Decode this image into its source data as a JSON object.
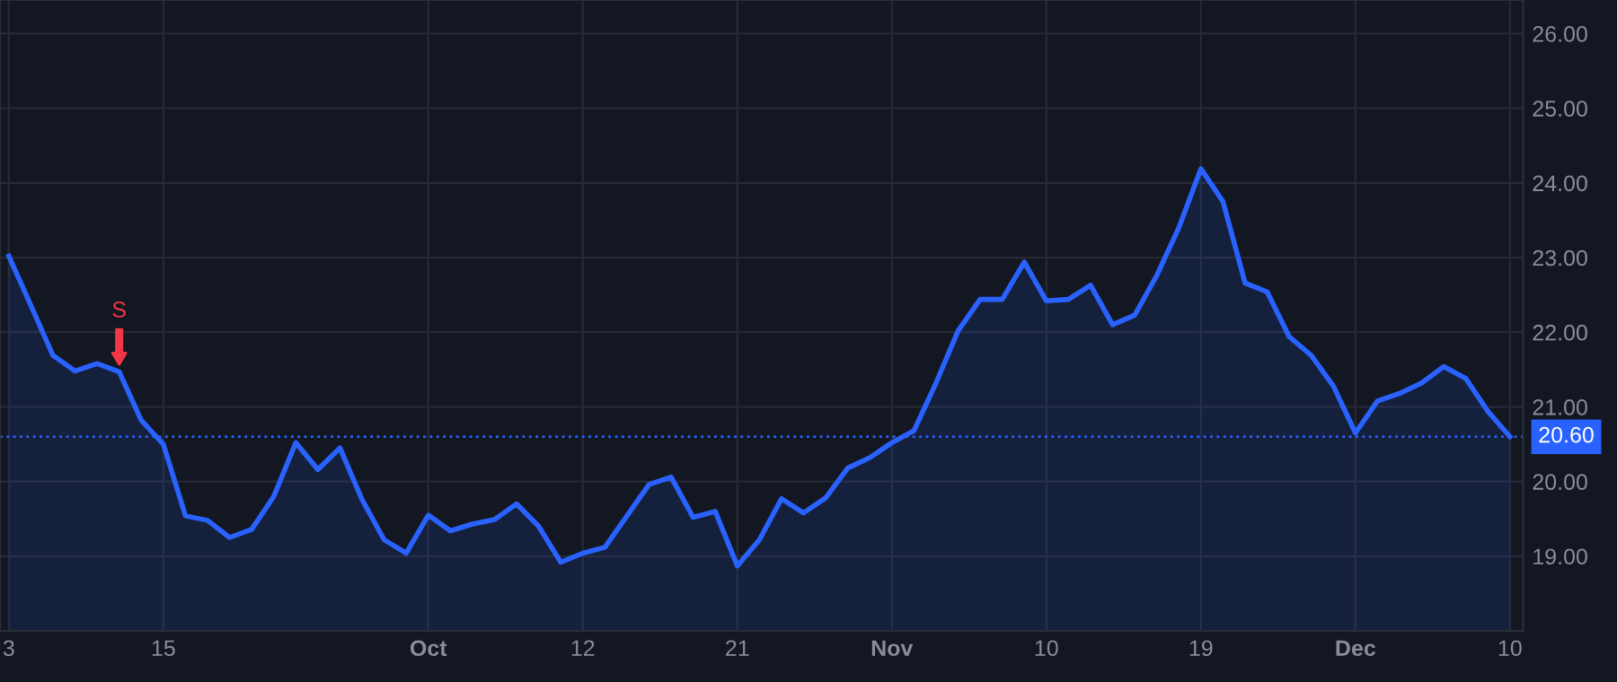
{
  "chart_data": {
    "type": "area",
    "categories": [
      "3",
      null,
      null,
      null,
      null,
      null,
      null,
      "15",
      null,
      null,
      null,
      null,
      null,
      null,
      null,
      null,
      null,
      null,
      null,
      "Oct",
      null,
      null,
      null,
      null,
      null,
      null,
      "12",
      null,
      null,
      null,
      null,
      null,
      null,
      "21",
      null,
      null,
      null,
      null,
      null,
      null,
      "Nov",
      null,
      null,
      null,
      null,
      null,
      null,
      "10",
      null,
      null,
      null,
      null,
      null,
      null,
      "19",
      null,
      null,
      null,
      null,
      null,
      null,
      "Dec",
      null,
      null,
      null,
      null,
      null,
      null,
      "10"
    ],
    "series": [
      {
        "color": "#2962ff",
        "values": [
          23.02,
          22.36,
          21.69,
          21.48,
          21.58,
          21.47,
          20.82,
          20.5,
          19.54,
          19.48,
          19.25,
          19.36,
          19.8,
          20.52,
          20.16,
          20.45,
          19.76,
          19.22,
          19.04,
          19.55,
          19.34,
          19.43,
          19.49,
          19.7,
          19.4,
          18.92,
          19.04,
          19.12,
          19.54,
          19.96,
          20.06,
          19.52,
          19.6,
          18.87,
          19.22,
          19.77,
          19.58,
          19.78,
          20.18,
          20.32,
          20.52,
          20.68,
          21.32,
          22.02,
          22.44,
          22.44,
          22.94,
          22.42,
          22.44,
          22.63,
          22.1,
          22.23,
          22.76,
          23.4,
          24.19,
          23.75,
          22.66,
          22.54,
          21.94,
          21.69,
          21.28,
          20.65,
          21.08,
          21.18,
          21.32,
          21.54,
          21.38,
          20.94,
          20.6
        ]
      }
    ],
    "ylim": [
      18.0,
      26.45
    ],
    "yticks": [
      {
        "value": 19,
        "label": "19.00"
      },
      {
        "value": 20,
        "label": "20.00"
      },
      {
        "value": 21,
        "label": "21.00"
      },
      {
        "value": 22,
        "label": "22.00"
      },
      {
        "value": 23,
        "label": "23.00"
      },
      {
        "value": 24,
        "label": "24.00"
      },
      {
        "value": 25,
        "label": "25.00"
      },
      {
        "value": 26,
        "label": "26.00"
      }
    ],
    "ref_lines": [
      {
        "axis": "y",
        "value": 20.6,
        "label": "20.60",
        "color": "#2962ff",
        "line_style": "dotted"
      }
    ],
    "annotations": [
      {
        "text": "S",
        "y": 21.47
      }
    ],
    "grid": true,
    "legend": false,
    "marker": "none",
    "line_style": "solid"
  }
}
